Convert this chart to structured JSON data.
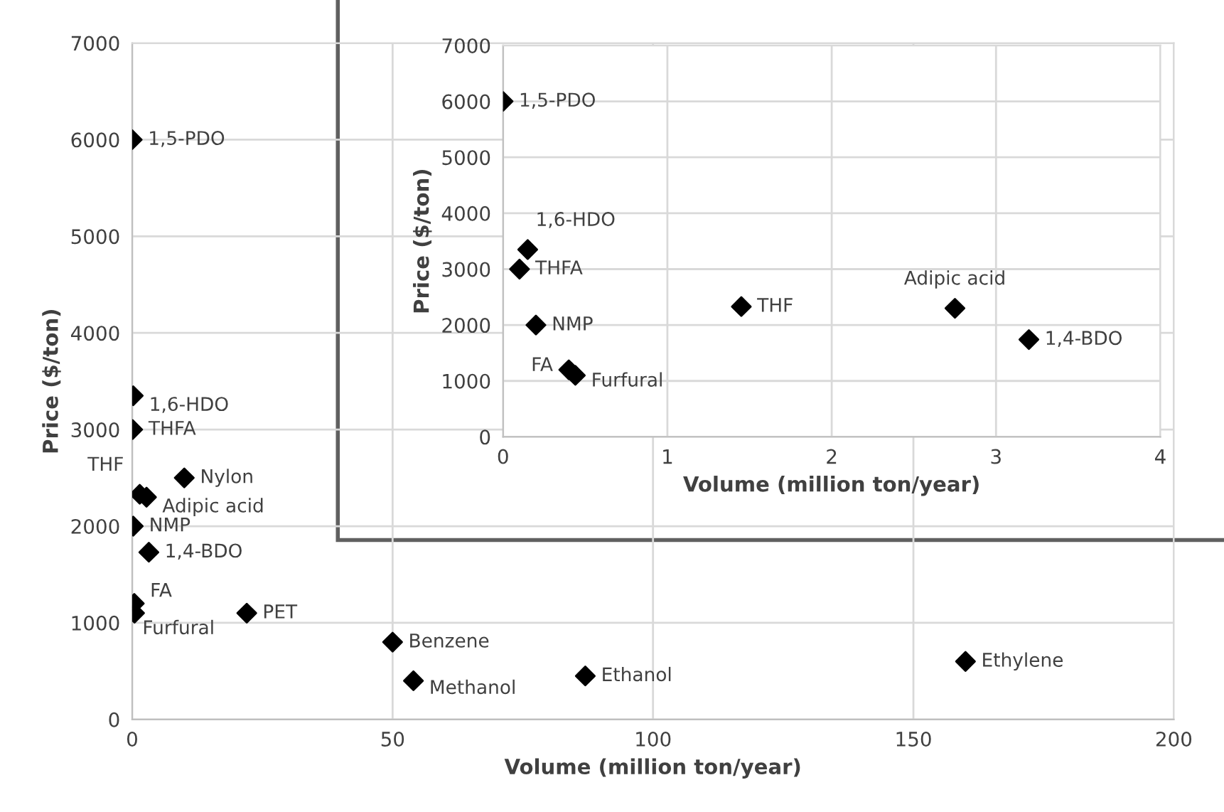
{
  "chart_data": [
    {
      "type": "scatter",
      "xlabel": "Volume (million ton/year)",
      "ylabel": "Price ($/ton)",
      "xlim": [
        0,
        200
      ],
      "ylim": [
        0,
        7000
      ],
      "xticks": [
        0,
        50,
        100,
        150,
        200
      ],
      "yticks": [
        0,
        1000,
        2000,
        3000,
        4000,
        5000,
        6000,
        7000
      ],
      "grid": true,
      "marker": "diamond",
      "x": [
        0,
        0.2,
        0.1,
        1.45,
        10,
        2.75,
        0.2,
        3.2,
        0.4,
        0.45,
        22,
        50,
        54,
        87,
        160
      ],
      "series": [
        {
          "color": "#000000",
          "values": [
            6000,
            3350,
            3000,
            2330,
            2500,
            2300,
            2000,
            1730,
            1200,
            1100,
            1100,
            800,
            400,
            450,
            600
          ]
        }
      ],
      "annotations": [
        {
          "text": "1,5-PDO",
          "x": 0,
          "y": 6000
        },
        {
          "text": "1,6-HDO",
          "x": 0.2,
          "y": 3350
        },
        {
          "text": "THFA",
          "x": 0.1,
          "y": 3000
        },
        {
          "text": "THF",
          "x": 1.45,
          "y": 2330
        },
        {
          "text": "Nylon",
          "x": 10,
          "y": 2500
        },
        {
          "text": "Adipic acid",
          "x": 2.75,
          "y": 2300
        },
        {
          "text": "NMP",
          "x": 0.2,
          "y": 2000
        },
        {
          "text": "1,4-BDO",
          "x": 3.2,
          "y": 1730
        },
        {
          "text": "FA",
          "x": 0.4,
          "y": 1200
        },
        {
          "text": "Furfural",
          "x": 0.45,
          "y": 1100
        },
        {
          "text": "PET",
          "x": 22,
          "y": 1100
        },
        {
          "text": "Benzene",
          "x": 50,
          "y": 800
        },
        {
          "text": "Methanol",
          "x": 54,
          "y": 400
        },
        {
          "text": "Ethanol",
          "x": 87,
          "y": 450
        },
        {
          "text": "Ethylene",
          "x": 160,
          "y": 600
        }
      ]
    },
    {
      "type": "scatter",
      "xlabel": "Volume (million ton/year)",
      "ylabel": "Price ($/ton)",
      "xlim": [
        0,
        4
      ],
      "ylim": [
        0,
        7000
      ],
      "xticks": [
        0,
        1,
        2,
        3,
        4
      ],
      "yticks": [
        0,
        1000,
        2000,
        3000,
        4000,
        5000,
        6000,
        7000
      ],
      "grid": true,
      "marker": "diamond",
      "x": [
        0,
        0.15,
        0.1,
        1.45,
        2.75,
        0.2,
        3.2,
        0.4,
        0.44
      ],
      "series": [
        {
          "color": "#000000",
          "values": [
            6000,
            3350,
            3000,
            2330,
            2300,
            2000,
            1740,
            1200,
            1100
          ]
        }
      ],
      "annotations": [
        {
          "text": "1,5-PDO",
          "x": 0,
          "y": 6000
        },
        {
          "text": "1,6-HDO",
          "x": 0.15,
          "y": 3350
        },
        {
          "text": "THFA",
          "x": 0.1,
          "y": 3000
        },
        {
          "text": "THF",
          "x": 1.45,
          "y": 2330
        },
        {
          "text": "Adipic acid",
          "x": 2.75,
          "y": 2300
        },
        {
          "text": "NMP",
          "x": 0.2,
          "y": 2000
        },
        {
          "text": "1,4-BDO",
          "x": 3.2,
          "y": 1740
        },
        {
          "text": "FA",
          "x": 0.4,
          "y": 1200
        },
        {
          "text": "Furfural",
          "x": 0.44,
          "y": 1100
        }
      ]
    }
  ]
}
